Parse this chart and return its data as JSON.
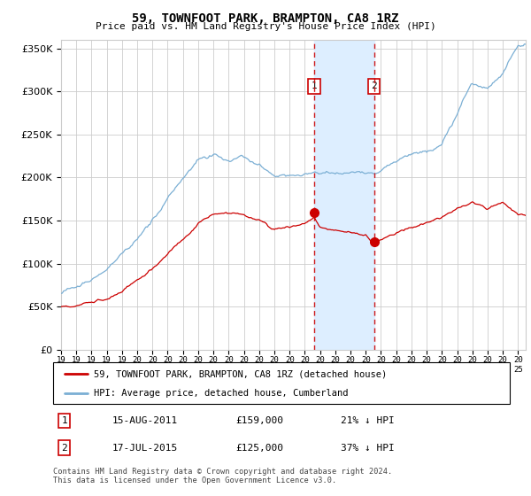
{
  "title": "59, TOWNFOOT PARK, BRAMPTON, CA8 1RZ",
  "subtitle": "Price paid vs. HM Land Registry's House Price Index (HPI)",
  "legend_property": "59, TOWNFOOT PARK, BRAMPTON, CA8 1RZ (detached house)",
  "legend_hpi": "HPI: Average price, detached house, Cumberland",
  "transaction1_date": "15-AUG-2011",
  "transaction1_price": "£159,000",
  "transaction1_hpi": "21% ↓ HPI",
  "transaction2_date": "17-JUL-2015",
  "transaction2_price": "£125,000",
  "transaction2_hpi": "37% ↓ HPI",
  "transaction1_x": 2011.62,
  "transaction1_y": 159000,
  "transaction2_x": 2015.54,
  "transaction2_y": 125000,
  "vline1_x": 2011.62,
  "vline2_x": 2015.54,
  "footnote": "Contains HM Land Registry data © Crown copyright and database right 2024.\nThis data is licensed under the Open Government Licence v3.0.",
  "ylim": [
    0,
    360000
  ],
  "xlim_start": 1995.0,
  "xlim_end": 2025.5,
  "property_color": "#cc0000",
  "hpi_color": "#7bafd4",
  "shade_color": "#ddeeff",
  "vline_color": "#cc0000",
  "grid_color": "#cccccc",
  "background_color": "#ffffff"
}
